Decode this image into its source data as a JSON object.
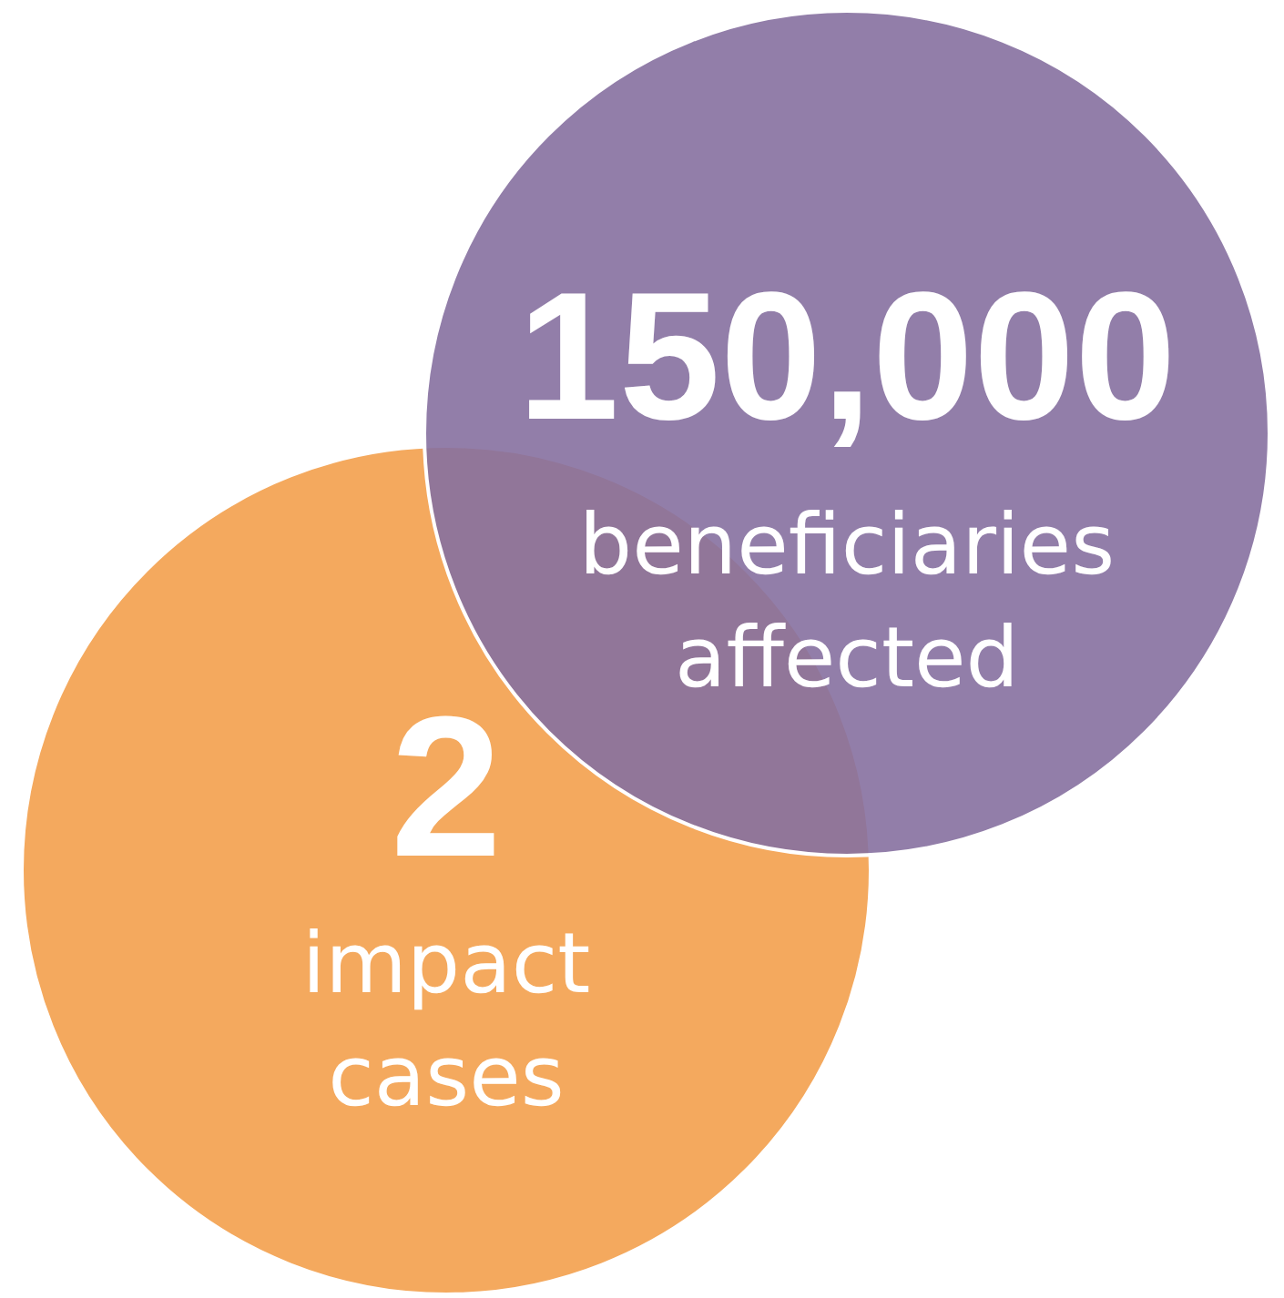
{
  "chart_data": {
    "type": "other",
    "categories": [
      "beneficiaries affected",
      "impact cases"
    ],
    "values": [
      150000,
      2
    ],
    "value_labels": [
      "150,000",
      "2"
    ],
    "colors": [
      "#8670a0",
      "#f4a95e"
    ]
  }
}
